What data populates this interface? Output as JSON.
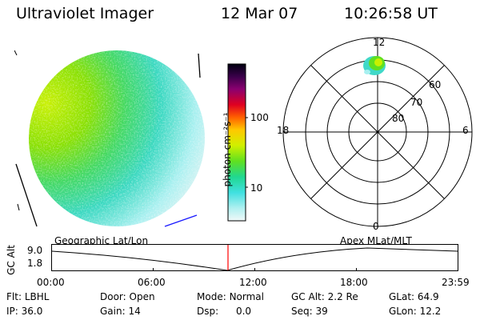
{
  "header": {
    "title": "Ultraviolet Imager",
    "date": "12 Mar 07",
    "time": "10:26:58 UT"
  },
  "colorbar": {
    "unit_label": "photon cm⁻²s⁻¹",
    "ticks": [
      "100",
      "10"
    ]
  },
  "polar": {
    "mlt_labels": {
      "top": "12",
      "left": "18",
      "right": "6",
      "bottom": "0"
    },
    "lat_labels": [
      "60",
      "70",
      "80"
    ]
  },
  "timeline": {
    "y_axis_label": "GC Alt",
    "y_ticks": [
      "9.0",
      "1.8"
    ],
    "left_title": "Geographic Lat/Lon",
    "right_title": "Apex MLat/MLT",
    "x_ticks": [
      "00:00",
      "06:00",
      "12:00",
      "18:00",
      "23:59"
    ],
    "current_time_marker": "10:26:58"
  },
  "status": {
    "row1": [
      {
        "label": "Flt:",
        "value": "LBHL"
      },
      {
        "label": "Door:",
        "value": "Open"
      },
      {
        "label": "Mode:",
        "value": "Normal"
      },
      {
        "label": "GC Alt:",
        "value": "2.2 Re"
      },
      {
        "label": "GLat:",
        "value": "64.9"
      }
    ],
    "row2": [
      {
        "label": "IP:",
        "value": "36.0"
      },
      {
        "label": "Gain:",
        "value": "14"
      },
      {
        "label": "Dsp:",
        "value": "0.0"
      },
      {
        "label": "Seq:",
        "value": "39"
      },
      {
        "label": "GLon:",
        "value": "12.2"
      }
    ]
  },
  "colors": {
    "accent_red": "#ff0000",
    "coast_blue": "#1a1aff"
  }
}
